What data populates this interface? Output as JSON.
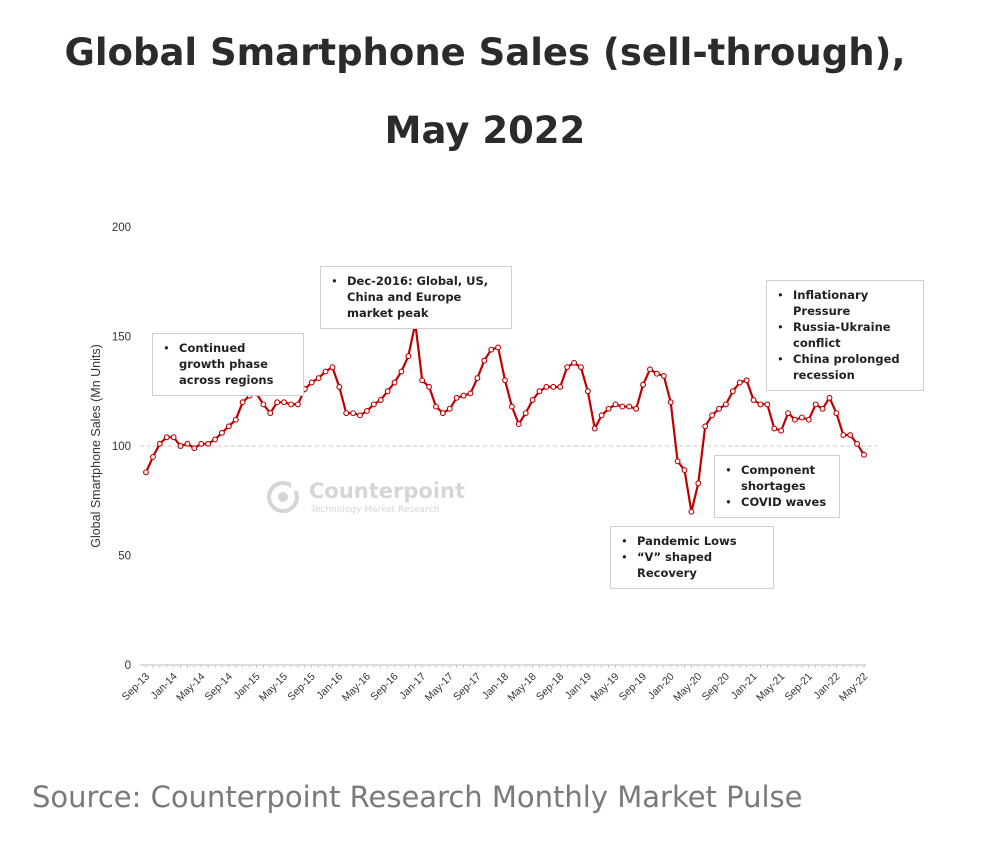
{
  "title": "Global Smartphone Sales (sell-through), May 2022",
  "source": "Source: Counterpoint Research Monthly Market Pulse",
  "watermark": {
    "name": "Counterpoint",
    "subtitle": "Technology Market Research"
  },
  "colors": {
    "series": "#c00000",
    "axis": "#bdbdbd",
    "reference": "#c8c8c8",
    "title": "#2b2b2b",
    "source": "#7a7a7a"
  },
  "annotations": [
    {
      "id": "growth",
      "items": [
        "Continued growth phase across regions"
      ]
    },
    {
      "id": "peak",
      "items": [
        "Dec-2016: Global, US, China and Europe market peak"
      ]
    },
    {
      "id": "inflation",
      "items": [
        "Inflationary Pressure",
        "Russia-Ukraine conflict",
        "China prolonged recession"
      ]
    },
    {
      "id": "components",
      "items": [
        "Component shortages",
        "COVID waves"
      ]
    },
    {
      "id": "pandemic",
      "items": [
        "Pandemic Lows",
        "“V” shaped Recovery"
      ]
    }
  ],
  "chart_data": {
    "type": "line",
    "title": "Global Smartphone Sales (sell-through), May 2022",
    "xlabel": "",
    "ylabel": "Global Smartphone Sales (Mn Units)",
    "ylim": [
      0,
      200
    ],
    "yticks": [
      0,
      50,
      100,
      150,
      200
    ],
    "reference_line": 100,
    "tick_labels": [
      "Sep-13",
      "Jan-14",
      "May-14",
      "Sep-14",
      "Jan-15",
      "May-15",
      "Sep-15",
      "Jan-16",
      "May-16",
      "Sep-16",
      "Jan-17",
      "May-17",
      "Sep-17",
      "Jan-18",
      "May-18",
      "Sep-18",
      "Jan-19",
      "May-19",
      "Sep-19",
      "Jan-20",
      "May-20",
      "Sep-20",
      "Jan-21",
      "May-21",
      "Sep-21",
      "Jan-22",
      "May-22"
    ],
    "x": [
      "Sep-13",
      "Oct-13",
      "Nov-13",
      "Dec-13",
      "Jan-14",
      "Feb-14",
      "Mar-14",
      "Apr-14",
      "May-14",
      "Jun-14",
      "Jul-14",
      "Aug-14",
      "Sep-14",
      "Oct-14",
      "Nov-14",
      "Dec-14",
      "Jan-15",
      "Feb-15",
      "Mar-15",
      "Apr-15",
      "May-15",
      "Jun-15",
      "Jul-15",
      "Aug-15",
      "Sep-15",
      "Oct-15",
      "Nov-15",
      "Dec-15",
      "Jan-16",
      "Feb-16",
      "Mar-16",
      "Apr-16",
      "May-16",
      "Jun-16",
      "Jul-16",
      "Aug-16",
      "Sep-16",
      "Oct-16",
      "Nov-16",
      "Dec-16",
      "Jan-17",
      "Feb-17",
      "Mar-17",
      "Apr-17",
      "May-17",
      "Jun-17",
      "Jul-17",
      "Aug-17",
      "Sep-17",
      "Oct-17",
      "Nov-17",
      "Dec-17",
      "Jan-18",
      "Feb-18",
      "Mar-18",
      "Apr-18",
      "May-18",
      "Jun-18",
      "Jul-18",
      "Aug-18",
      "Sep-18",
      "Oct-18",
      "Nov-18",
      "Dec-18",
      "Jan-19",
      "Feb-19",
      "Mar-19",
      "Apr-19",
      "May-19",
      "Jun-19",
      "Jul-19",
      "Aug-19",
      "Sep-19",
      "Oct-19",
      "Nov-19",
      "Dec-19",
      "Jan-20",
      "Feb-20",
      "Mar-20",
      "Apr-20",
      "May-20",
      "Jun-20",
      "Jul-20",
      "Aug-20",
      "Sep-20",
      "Oct-20",
      "Nov-20",
      "Dec-20",
      "Jan-21",
      "Feb-21",
      "Mar-21",
      "Apr-21",
      "May-21",
      "Jun-21",
      "Jul-21",
      "Aug-21",
      "Sep-21",
      "Oct-21",
      "Nov-21",
      "Dec-21",
      "Jan-22",
      "Feb-22",
      "Mar-22",
      "Apr-22",
      "May-22"
    ],
    "series": [
      {
        "name": "Global Smartphone Sales",
        "values": [
          88,
          95,
          101,
          104,
          104,
          100,
          101,
          99,
          101,
          101,
          103,
          106,
          109,
          112,
          120,
          123,
          124,
          119,
          115,
          120,
          120,
          119,
          119,
          126,
          129,
          131,
          134,
          136,
          127,
          115,
          115,
          114,
          116,
          119,
          121,
          125,
          129,
          134,
          141,
          156,
          130,
          127,
          118,
          115,
          117,
          122,
          123,
          124,
          131,
          139,
          144,
          145,
          130,
          118,
          110,
          115,
          121,
          125,
          127,
          127,
          127,
          136,
          138,
          136,
          125,
          108,
          114,
          117,
          119,
          118,
          118,
          117,
          128,
          135,
          133,
          132,
          120,
          93,
          89,
          70,
          83,
          109,
          114,
          117,
          119,
          125,
          129,
          130,
          121,
          119,
          119,
          108,
          107,
          115,
          112,
          113,
          112,
          119,
          117,
          122,
          115,
          105,
          105,
          101,
          96
        ]
      }
    ]
  }
}
